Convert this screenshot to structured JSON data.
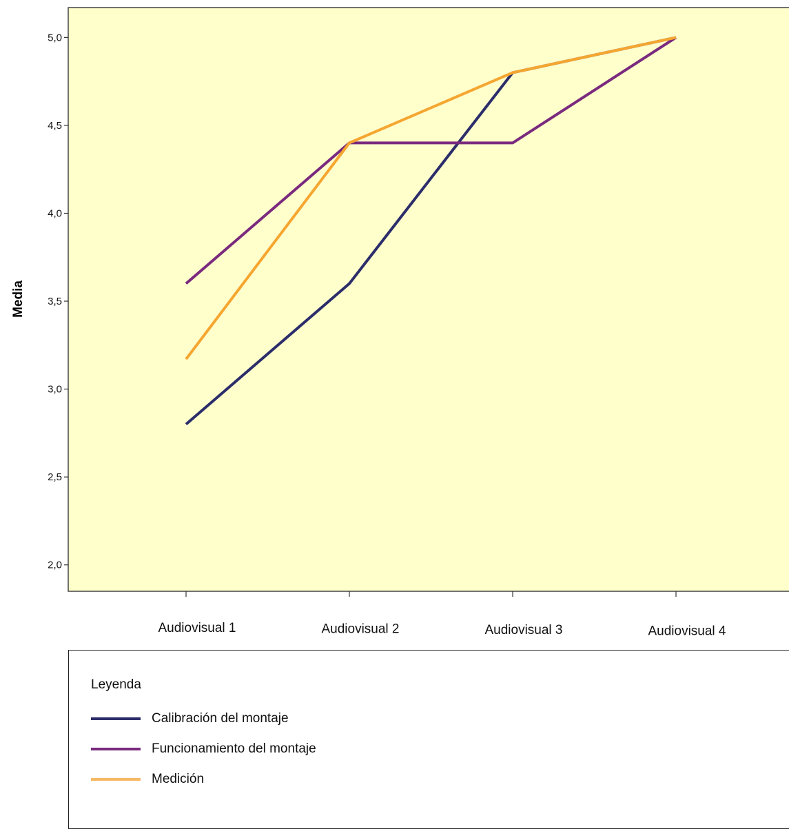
{
  "chart_data": {
    "type": "line",
    "categories": [
      "Audiovisual 1",
      "Audiovisual 2",
      "Audiovisual 3",
      "Audiovisual 4"
    ],
    "ylabel": "Media",
    "ylim": [
      1.85,
      5.17
    ],
    "yticks": [
      "2,0",
      "2,5",
      "3,0",
      "3,5",
      "4,0",
      "4,5",
      "5,0"
    ],
    "ytick_values": [
      2.0,
      2.5,
      3.0,
      3.5,
      4.0,
      4.5,
      5.0
    ],
    "plot_background": "#ffffcc",
    "series": [
      {
        "name": "Calibración del montaje",
        "color": "#2b2d6b",
        "values": [
          2.8,
          3.6,
          4.8,
          5.0
        ]
      },
      {
        "name": "Funcionamiento del montaje",
        "color": "#7a2a7e",
        "values": [
          3.6,
          4.4,
          4.4,
          5.0
        ]
      },
      {
        "name": "Medición",
        "color": "#f5a630",
        "values": [
          3.17,
          4.4,
          4.8,
          5.0
        ]
      }
    ],
    "legend": {
      "title": "Leyenda",
      "placement": "bottom",
      "swatch_colors": [
        "#2b2d6b",
        "#7a2a7e",
        "#f7b866"
      ]
    }
  }
}
